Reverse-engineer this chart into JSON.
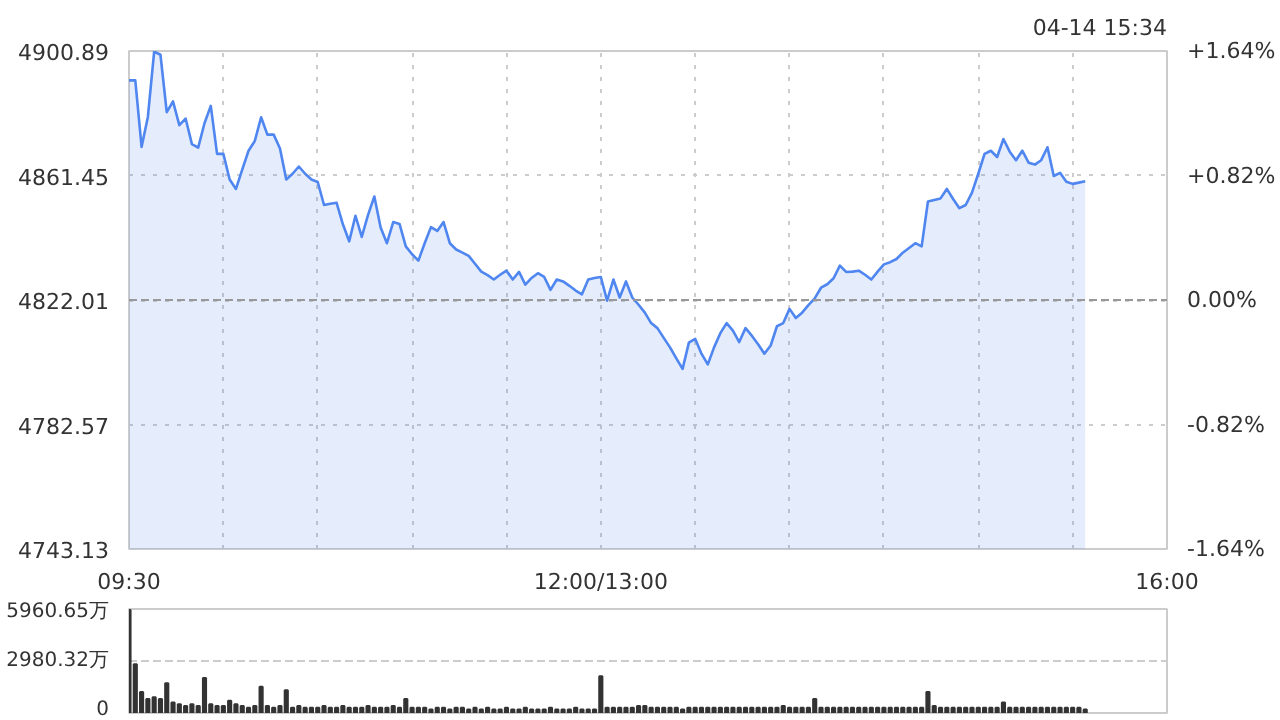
{
  "chart_data": [
    {
      "type": "area",
      "color": "#4f86f0",
      "annotations": [
        "04-14 15:34"
      ],
      "categories": [
        "09:30",
        null,
        null,
        null,
        null,
        null,
        null,
        null,
        null,
        null,
        null,
        null,
        null,
        null,
        null,
        null,
        null,
        null,
        null,
        null,
        null,
        null,
        null,
        null,
        null,
        null,
        null,
        null,
        null,
        null,
        null,
        null,
        null,
        null,
        null,
        null,
        null,
        null,
        null,
        null,
        null,
        null,
        null,
        null,
        null,
        null,
        null,
        null,
        null,
        null,
        null,
        null,
        null,
        null,
        null,
        null,
        null,
        null,
        null,
        null,
        null,
        null,
        null,
        null,
        null,
        null,
        null,
        null,
        null,
        null,
        null,
        null,
        null,
        null,
        null,
        "12:00/13:00",
        null,
        null,
        null,
        null,
        null,
        null,
        null,
        null,
        null,
        null,
        null,
        null,
        null,
        null,
        null,
        null,
        null,
        null,
        null,
        null,
        null,
        null,
        null,
        null,
        null,
        null,
        null,
        null,
        null,
        null,
        null,
        null,
        null,
        null,
        null,
        null,
        null,
        null,
        null,
        null,
        null,
        null,
        null,
        null,
        null,
        null,
        null,
        null,
        null,
        null,
        null,
        null,
        null,
        null,
        null,
        null,
        null,
        null,
        null,
        null,
        null,
        null,
        null,
        null,
        null,
        null,
        null,
        null,
        null,
        null,
        null,
        null,
        null,
        null,
        null,
        null,
        null,
        null,
        null,
        null,
        null,
        null,
        null,
        null,
        null,
        null,
        null,
        null,
        null,
        "16:00"
      ],
      "values": [
        4891.6,
        4891.6,
        4870.5,
        4880.0,
        4900.7,
        4899.7,
        4881.5,
        4884.9,
        4877.4,
        4879.5,
        4871.4,
        4870.3,
        4878.0,
        4883.5,
        4868.3,
        4868.3,
        4860.2,
        4857.2,
        4863.3,
        4869.3,
        4872.4,
        4879.9,
        4874.4,
        4874.4,
        4870.0,
        4860.2,
        4862.0,
        4864.3,
        4862.0,
        4860.2,
        4859.4,
        4852.1,
        4852.5,
        4852.8,
        4846.0,
        4840.6,
        4848.7,
        4842.0,
        4849.0,
        4854.8,
        4845.0,
        4840.0,
        4846.7,
        4846.1,
        4839.0,
        4836.5,
        4834.5,
        4840.0,
        4845.1,
        4843.9,
        4846.7,
        4840.0,
        4838.0,
        4837.0,
        4836.0,
        4833.5,
        4831.0,
        4829.9,
        4828.5,
        4830.0,
        4831.3,
        4828.5,
        4830.9,
        4826.9,
        4829.0,
        4830.5,
        4829.3,
        4825.2,
        4828.5,
        4827.9,
        4826.5,
        4825.0,
        4823.8,
        4828.5,
        4829.0,
        4829.3,
        4821.8,
        4828.5,
        4822.8,
        4827.9,
        4822.8,
        4820.5,
        4818.0,
        4814.7,
        4813.1,
        4810.0,
        4807.0,
        4803.5,
        4800.2,
        4808.5,
        4809.7,
        4805.0,
        4801.6,
        4807.0,
        4811.5,
        4814.7,
        4812.3,
        4808.7,
        4813.1,
        4810.7,
        4808.0,
        4805.0,
        4807.6,
        4813.7,
        4814.7,
        4819.2,
        4816.3,
        4818.0,
        4820.4,
        4822.5,
        4825.9,
        4827.0,
        4828.9,
        4832.9,
        4830.9,
        4831.0,
        4831.3,
        4830.0,
        4828.5,
        4831.0,
        4833.3,
        4834.0,
        4835.0,
        4837.0,
        4838.5,
        4840.0,
        4839.0,
        4853.2,
        4853.7,
        4854.2,
        4857.2,
        4854.0,
        4851.1,
        4852.1,
        4856.0,
        4862.0,
        4868.3,
        4869.3,
        4867.3,
        4873.0,
        4869.0,
        4866.3,
        4869.3,
        4865.5,
        4864.9,
        4866.3,
        4870.4,
        4861.3,
        4862.3,
        4859.5,
        4858.8,
        4859.2,
        4859.6,
        null,
        null,
        null,
        null,
        null,
        null,
        null,
        null,
        null,
        null,
        null,
        null,
        null
      ],
      "ylim": [
        4743.13,
        4900.89
      ],
      "yticks": [
        4743.13,
        4782.57,
        4822.01,
        4861.45,
        4900.89
      ],
      "y2lim": [
        -1.64,
        1.64
      ],
      "y2ticks": [
        {
          "value": -1.64,
          "label": "-1.64%"
        },
        {
          "value": -0.82,
          "label": "-0.82%"
        },
        {
          "value": 0,
          "label": "0.00%"
        },
        {
          "value": 0.82,
          "label": "+0.82%"
        },
        {
          "value": 1.64,
          "label": "+1.64%"
        }
      ],
      "ref_lines": [
        {
          "axis": "y",
          "value": 4822.01,
          "color": "#999999",
          "line_style": "dashed"
        }
      ],
      "grid": true
    },
    {
      "type": "bar",
      "color": "#333333",
      "tick_labels": "y",
      "grid": "y",
      "categories": [
        null,
        null,
        null,
        null,
        null,
        null,
        null,
        null,
        null,
        null,
        null,
        null,
        null,
        null,
        null,
        null,
        null,
        null,
        null,
        null,
        null,
        null,
        null,
        null,
        null,
        null,
        null,
        null,
        null,
        null,
        null,
        null,
        null,
        null,
        null,
        null,
        null,
        null,
        null,
        null,
        null,
        null,
        null,
        null,
        null,
        null,
        null,
        null,
        null,
        null,
        null,
        null,
        null,
        null,
        null,
        null,
        null,
        null,
        null,
        null,
        null,
        null,
        null,
        null,
        null,
        null,
        null,
        null,
        null,
        null,
        null,
        null,
        null,
        null,
        null,
        null,
        null,
        null,
        null,
        null,
        null,
        null,
        null,
        null,
        null,
        null,
        null,
        null,
        null,
        null,
        null,
        null,
        null,
        null,
        null,
        null,
        null,
        null,
        null,
        null,
        null,
        null,
        null,
        null,
        null,
        null,
        null,
        null,
        null,
        null,
        null,
        null,
        null,
        null,
        null,
        null,
        null,
        null,
        null,
        null,
        null,
        null,
        null,
        null,
        null,
        null,
        null,
        null,
        null,
        null,
        null,
        null,
        null,
        null,
        null,
        null,
        null,
        null,
        null,
        null,
        null,
        null,
        null,
        null,
        null,
        null,
        null,
        null,
        null,
        null,
        null,
        null,
        null,
        null,
        null,
        null,
        null,
        null,
        null,
        null,
        null,
        null,
        null,
        null,
        null,
        null
      ],
      "values": [
        5900,
        2800,
        1200,
        800,
        900,
        800,
        1700,
        600,
        500,
        400,
        500,
        400,
        2000,
        500,
        400,
        400,
        700,
        500,
        400,
        300,
        400,
        1500,
        400,
        300,
        400,
        1300,
        300,
        400,
        300,
        300,
        300,
        400,
        300,
        300,
        400,
        300,
        300,
        300,
        400,
        300,
        300,
        300,
        400,
        300,
        800,
        300,
        300,
        300,
        200,
        300,
        300,
        200,
        300,
        300,
        200,
        300,
        200,
        300,
        200,
        200,
        300,
        200,
        200,
        300,
        200,
        200,
        200,
        300,
        200,
        200,
        200,
        300,
        200,
        200,
        200,
        2100,
        300,
        300,
        300,
        300,
        300,
        400,
        400,
        300,
        300,
        300,
        300,
        300,
        200,
        300,
        300,
        300,
        300,
        300,
        300,
        300,
        300,
        300,
        300,
        300,
        300,
        300,
        300,
        300,
        400,
        300,
        300,
        300,
        300,
        800,
        300,
        300,
        300,
        300,
        300,
        300,
        300,
        300,
        300,
        300,
        300,
        300,
        300,
        300,
        300,
        300,
        300,
        1200,
        400,
        300,
        300,
        300,
        300,
        300,
        300,
        300,
        300,
        300,
        300,
        600,
        300,
        300,
        300,
        300,
        300,
        300,
        300,
        300,
        300,
        300,
        300,
        300,
        200,
        null,
        null,
        null,
        null,
        null,
        null,
        null,
        null,
        null,
        null,
        null,
        null,
        null
      ],
      "ylim": [
        0,
        5960.65
      ],
      "yticks": [
        0,
        {
          "value": 2980.32,
          "label": "2980.32万"
        },
        {
          "value": 5960.65,
          "label": "5960.65万"
        }
      ]
    }
  ]
}
